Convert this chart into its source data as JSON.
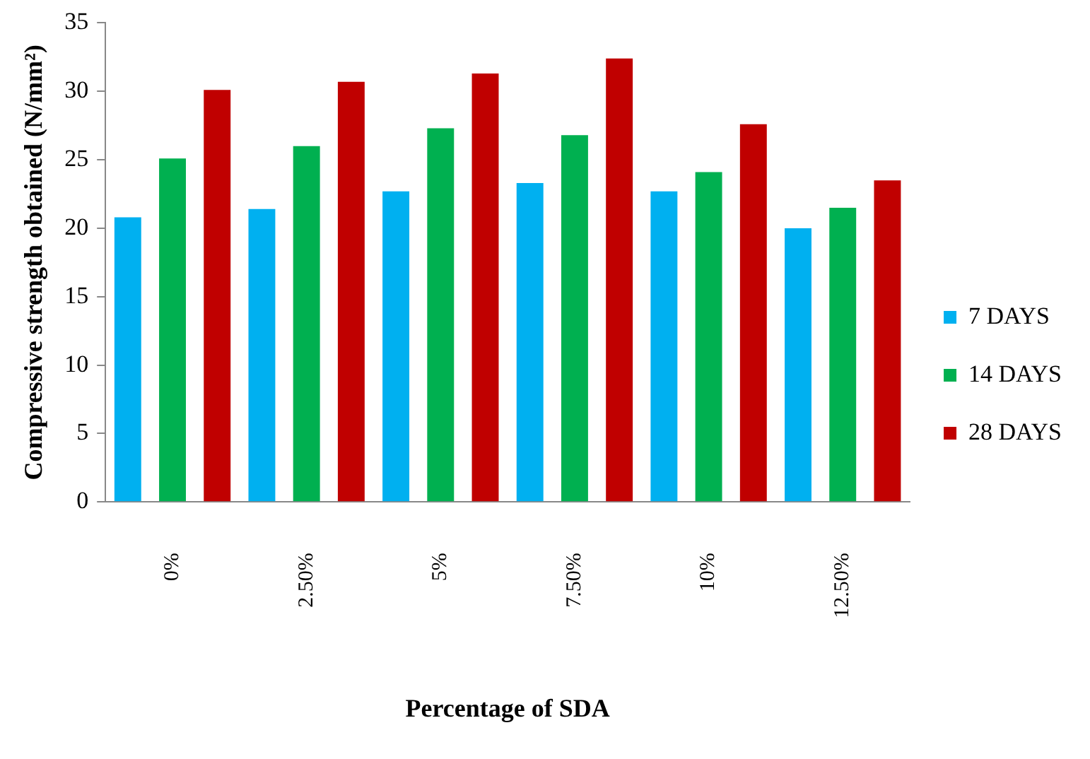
{
  "chart_data": {
    "type": "bar",
    "xlabel": "Percentage of SDA",
    "ylabel": "Compressive strength obtained (N/mm²)",
    "categories": [
      "0%",
      "2.50%",
      "5%",
      "7.50%",
      "10%",
      "12.50%"
    ],
    "series": [
      {
        "name": "7 DAYS",
        "color": "#00b0f0",
        "values": [
          20.8,
          21.4,
          22.7,
          23.3,
          22.7,
          20.0
        ]
      },
      {
        "name": "14 DAYS",
        "color": "#00b050",
        "values": [
          25.1,
          26.0,
          27.3,
          26.8,
          24.1,
          21.5
        ]
      },
      {
        "name": "28 DAYS",
        "color": "#c00000",
        "values": [
          30.1,
          30.7,
          31.3,
          32.4,
          27.6,
          23.5
        ]
      }
    ],
    "ylim": [
      0,
      35
    ],
    "yticks": [
      0,
      5,
      10,
      15,
      20,
      25,
      30,
      35
    ],
    "grid": false,
    "legend": "right"
  }
}
